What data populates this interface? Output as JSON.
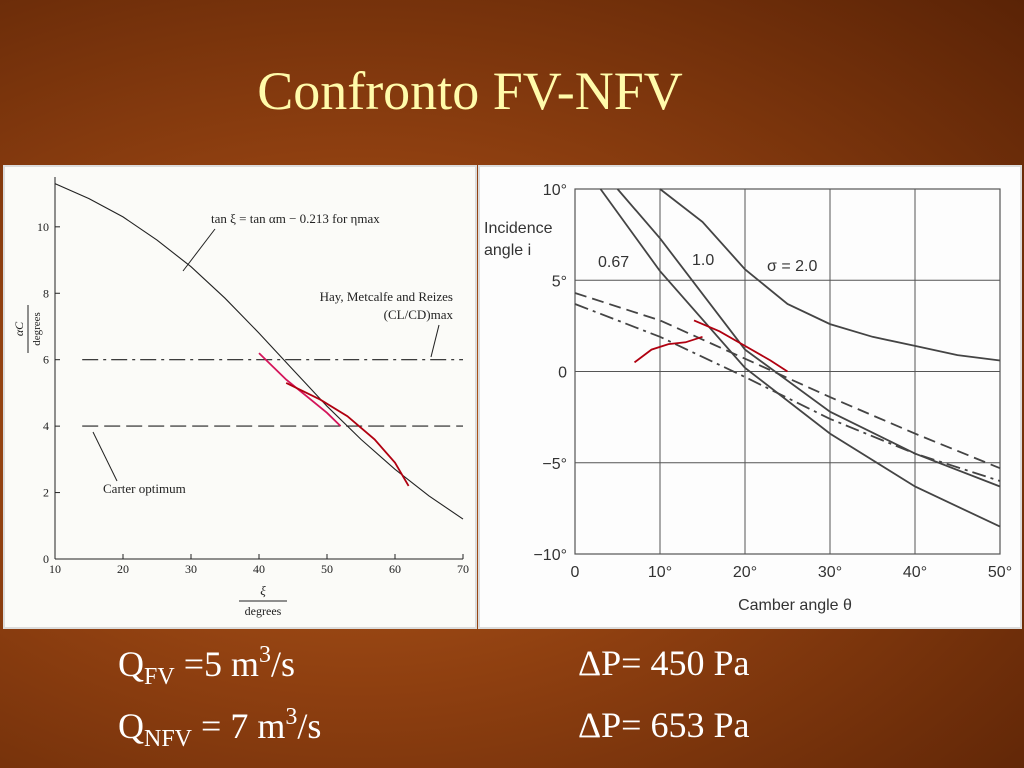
{
  "slide": {
    "title": "Confronto FV-NFV"
  },
  "formulas": {
    "q_fv_sym": "Q",
    "q_fv_sub": "FV",
    "q_fv_mid": " =5 m",
    "q_fv_sup": "3",
    "q_fv_end": "/s",
    "q_nfv_sym": "Q",
    "q_nfv_sub": "NFV",
    "q_nfv_mid": " = 7 m",
    "q_nfv_sup": "3",
    "q_nfv_end": "/s",
    "dp1": "ΔP= 450 Pa",
    "dp2": "ΔP= 653 Pa"
  },
  "colors": {
    "title": "#fffbaa",
    "text": "#ffffff",
    "annotation_left": "#d4145a",
    "annotation_right": "#b00010"
  },
  "chart_data": [
    {
      "type": "line",
      "xlim": [
        10,
        70
      ],
      "ylim": [
        0,
        11.5
      ],
      "xticks": [
        "10",
        "20",
        "30",
        "40",
        "50",
        "60",
        "70"
      ],
      "yticks": [
        "0",
        "2",
        "4",
        "6",
        "8",
        "10"
      ],
      "xlabel_top": "ξ",
      "xlabel_bottom": "degrees",
      "ylabel_top": "αC",
      "ylabel_bottom": "degrees",
      "labels": {
        "formula": "tan ξ = tan αm − 0.213 for ηmax",
        "hay_line1": "Hay, Metcalfe and Reizes",
        "hay_line2": "(CL/CD)max",
        "carter": "Carter optimum"
      },
      "series": [
        {
          "x": [
            10,
            15,
            20,
            25,
            30,
            35,
            40,
            45,
            50,
            55,
            60,
            65,
            70
          ],
          "y": [
            11.3,
            10.85,
            10.3,
            9.6,
            8.8,
            7.85,
            6.8,
            5.7,
            4.6,
            3.6,
            2.7,
            1.9,
            1.2
          ]
        },
        {
          "x": [
            14,
            70
          ],
          "y": [
            6.0,
            6.0
          ],
          "style": "dashdot"
        },
        {
          "x": [
            14,
            70
          ],
          "y": [
            4.0,
            4.0
          ],
          "style": "dashed"
        }
      ],
      "annotations": [
        {
          "x": [
            40,
            44,
            47,
            50,
            52
          ],
          "y": [
            6.2,
            5.4,
            4.9,
            4.4,
            4.0
          ]
        },
        {
          "x": [
            44,
            49,
            53,
            57,
            60,
            62
          ],
          "y": [
            5.3,
            4.8,
            4.3,
            3.6,
            2.9,
            2.2
          ]
        }
      ]
    },
    {
      "type": "line",
      "xlim": [
        0,
        50
      ],
      "ylim": [
        -10,
        10
      ],
      "xticks": [
        "0",
        "10°",
        "20°",
        "30°",
        "40°",
        "50°"
      ],
      "yticks": [
        "10°",
        "5°",
        "0",
        "−5°",
        "−10°"
      ],
      "xlabel": "Camber angle θ",
      "ylabel_line1": "Incidence",
      "ylabel_line2": "angle i",
      "series": [
        {
          "name": "0.67",
          "x": [
            3,
            10,
            20,
            30,
            40,
            50
          ],
          "y": [
            10,
            5.5,
            0.2,
            -3.4,
            -6.3,
            -8.5
          ]
        },
        {
          "name": "1.0",
          "x": [
            5,
            10,
            20,
            30,
            40,
            50
          ],
          "y": [
            10,
            7.3,
            1.2,
            -2.2,
            -4.5,
            -6.3
          ]
        },
        {
          "name": "σ = 2.0",
          "x": [
            10,
            15,
            20,
            25,
            30,
            35,
            40,
            45,
            50
          ],
          "y": [
            10,
            8.2,
            5.6,
            3.7,
            2.6,
            1.9,
            1.4,
            0.9,
            0.6
          ]
        },
        {
          "x": [
            0,
            10,
            20,
            30,
            40,
            50
          ],
          "y": [
            4.3,
            2.8,
            0.7,
            -1.4,
            -3.4,
            -5.3
          ],
          "style": "dashed"
        },
        {
          "x": [
            0,
            10,
            20,
            30,
            40,
            50
          ],
          "y": [
            3.7,
            1.9,
            -0.3,
            -2.6,
            -4.5,
            -6.0
          ],
          "style": "dashdot"
        }
      ],
      "annotations": [
        {
          "x": [
            7,
            9,
            11,
            13,
            15
          ],
          "y": [
            0.5,
            1.2,
            1.5,
            1.6,
            1.9
          ]
        },
        {
          "x": [
            14,
            17,
            20,
            23,
            25
          ],
          "y": [
            2.8,
            2.2,
            1.4,
            0.6,
            0.0
          ]
        }
      ]
    }
  ]
}
